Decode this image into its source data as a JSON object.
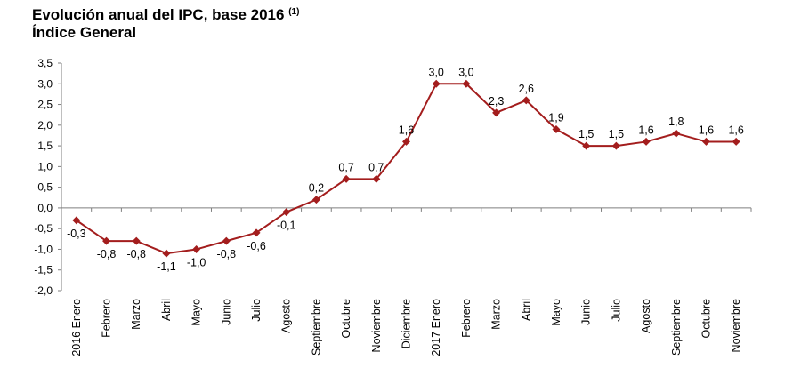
{
  "header": {
    "title_main": "Evolución anual del IPC, base 2016",
    "title_note": "(1)",
    "subtitle": "Índice General"
  },
  "chart_data": {
    "type": "line",
    "title": "Evolución anual del IPC, base 2016 (1)",
    "subtitle": "Índice General",
    "xlabel": "",
    "ylabel": "",
    "ylim": [
      -2.0,
      3.5
    ],
    "ytick_step": 0.5,
    "y_tick_labels": [
      "3,5",
      "3,0",
      "2,5",
      "2,0",
      "1,5",
      "1,0",
      "0,5",
      "0,0",
      "-0,5",
      "-1,0",
      "-1,5",
      "-2,0"
    ],
    "grid": false,
    "legend": "none",
    "categories": [
      "2016 Enero",
      "Febrero",
      "Marzo",
      "Abril",
      "Mayo",
      "Junio",
      "Julio",
      "Agosto",
      "Septiembre",
      "Octubre",
      "Noviembre",
      "Diciembre",
      "2017 Enero",
      "Febrero",
      "Marzo",
      "Abril",
      "Mayo",
      "Junio",
      "Julio",
      "Agosto",
      "Septiembre",
      "Octubre",
      "Noviembre"
    ],
    "series": [
      {
        "name": "Índice General",
        "color": "#A31D1D",
        "marker": "diamond",
        "values": [
          -0.3,
          -0.8,
          -0.8,
          -1.1,
          -1.0,
          -0.8,
          -0.6,
          -0.1,
          0.2,
          0.7,
          0.7,
          1.6,
          3.0,
          3.0,
          2.3,
          2.6,
          1.9,
          1.5,
          1.5,
          1.6,
          1.8,
          1.6,
          1.6
        ],
        "labels": [
          "-0,3",
          "-0,8",
          "-0,8",
          "-1,1",
          "-1,0",
          "-0,8",
          "-0,6",
          "-0,1",
          "0,2",
          "0,7",
          "0,7",
          "1,6",
          "3,0",
          "3,0",
          "2,3",
          "2,6",
          "1,9",
          "1,5",
          "1,5",
          "1,6",
          "1,8",
          "1,6",
          "1,6"
        ]
      }
    ]
  }
}
